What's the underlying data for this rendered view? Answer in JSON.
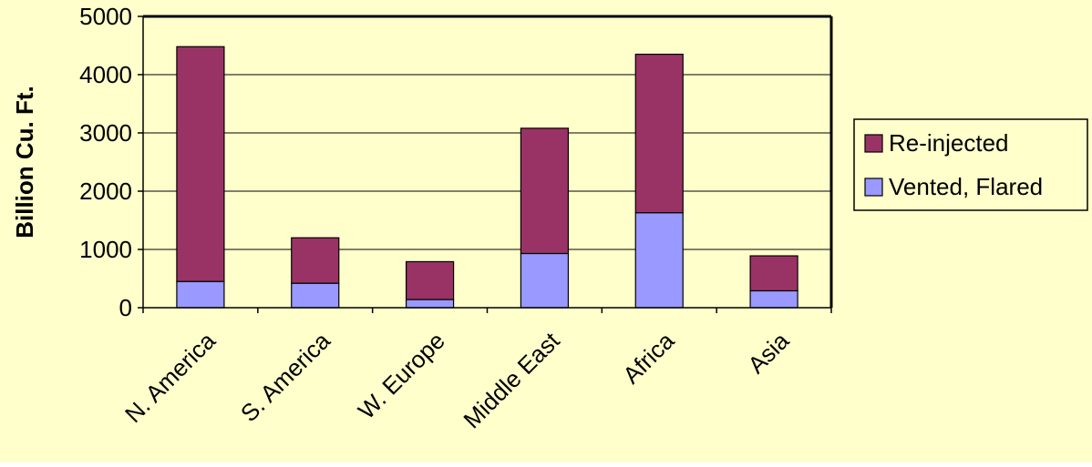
{
  "chart_data": {
    "type": "bar",
    "stacked": true,
    "categories": [
      "N. America",
      "S. America",
      "W. Europe",
      "Middle East",
      "Africa",
      "Asia"
    ],
    "series": [
      {
        "name": "Vented, Flared",
        "values": [
          450,
          420,
          140,
          930,
          1630,
          290
        ]
      },
      {
        "name": "Re-injected",
        "values": [
          4030,
          780,
          650,
          2150,
          2720,
          600
        ]
      }
    ],
    "ylabel": "Billion Cu. Ft.",
    "xlabel": "",
    "ylim": [
      0,
      5000
    ],
    "yticks": [
      0,
      1000,
      2000,
      3000,
      4000,
      5000
    ],
    "grid": true,
    "legend_position": "right",
    "colors": {
      "background": "#FFFFCC",
      "plot_background": "#FFFFCC",
      "Vented, Flared": "#9999FF",
      "Re-injected": "#993366",
      "axis": "#000000",
      "grid": "#000000"
    }
  }
}
